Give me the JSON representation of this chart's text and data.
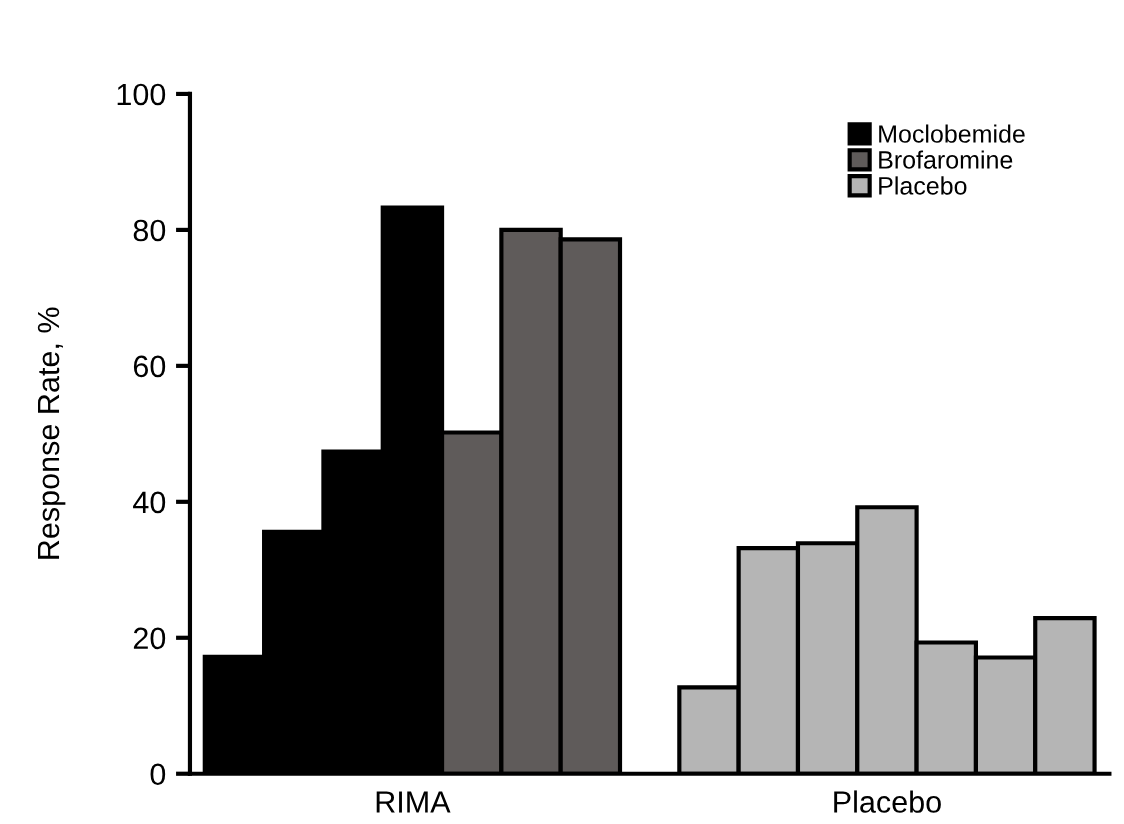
{
  "chart_data": {
    "type": "bar",
    "ylabel": "Response Rate, %",
    "categories": [
      null,
      null,
      null,
      null,
      null,
      null,
      null,
      null,
      null,
      null,
      null,
      null,
      null,
      null,
      null
    ],
    "series": [
      {
        "name": "Moclobemide",
        "color": "#000000",
        "values": [
          17.2,
          35.6,
          47.4,
          83.3,
          null,
          null,
          null,
          null,
          null,
          null,
          null,
          null,
          null,
          null,
          null
        ]
      },
      {
        "name": "Brofaromine",
        "color": "#5f5b5a",
        "values": [
          null,
          null,
          null,
          null,
          50.2,
          80,
          78.6,
          null,
          null,
          null,
          null,
          null,
          null,
          null,
          null
        ]
      },
      {
        "name": "Placebo",
        "color": "#b5b5b5",
        "values": [
          null,
          null,
          null,
          null,
          null,
          null,
          null,
          null,
          12.7,
          33.2,
          33.9,
          39.2,
          19.3,
          17.1,
          22.9
        ]
      }
    ],
    "annotations": [
      "RIMA",
      "Placebo"
    ],
    "ylim": [
      0,
      100
    ],
    "yticks": [
      0,
      20,
      40,
      60,
      80,
      100
    ],
    "grid": false,
    "legend": "top right"
  }
}
